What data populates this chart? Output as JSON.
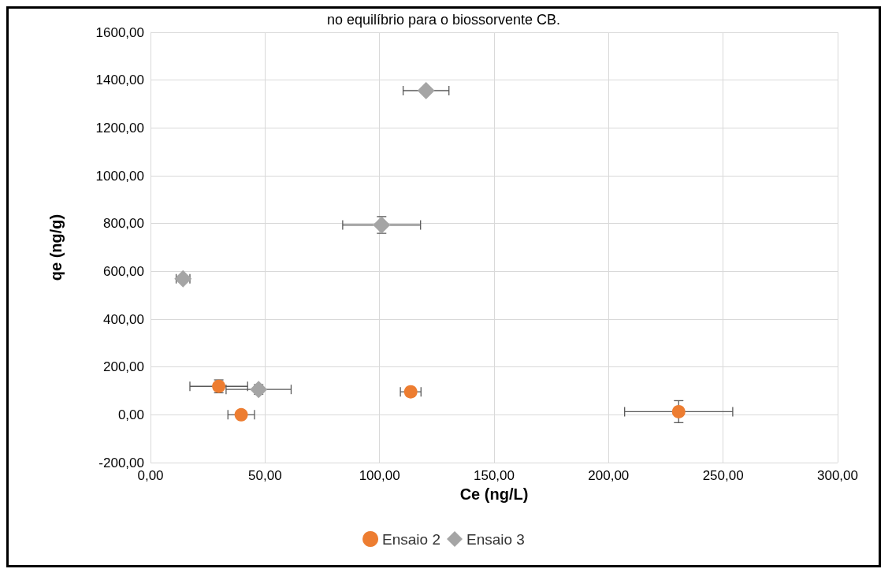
{
  "chart_data": {
    "type": "scatter",
    "title": "no equilíbrio para o biossorvente CB.",
    "xlabel": "Ce (ng/L)",
    "ylabel": "qe (ng/g)",
    "xlim": [
      0,
      300
    ],
    "ylim": [
      -200,
      1600
    ],
    "xticks": [
      {
        "value": 0,
        "label": "0,00"
      },
      {
        "value": 50,
        "label": "50,00"
      },
      {
        "value": 100,
        "label": "100,00"
      },
      {
        "value": 150,
        "label": "150,00"
      },
      {
        "value": 200,
        "label": "200,00"
      },
      {
        "value": 250,
        "label": "250,00"
      },
      {
        "value": 300,
        "label": "300,00"
      }
    ],
    "yticks": [
      {
        "value": -200,
        "label": "-200,00"
      },
      {
        "value": 0,
        "label": "0,00"
      },
      {
        "value": 200,
        "label": "200,00"
      },
      {
        "value": 400,
        "label": "400,00"
      },
      {
        "value": 600,
        "label": "600,00"
      },
      {
        "value": 800,
        "label": "800,00"
      },
      {
        "value": 1000,
        "label": "1000,00"
      },
      {
        "value": 1200,
        "label": "1200,00"
      },
      {
        "value": 1400,
        "label": "1400,00"
      },
      {
        "value": 1600,
        "label": "1600,00"
      }
    ],
    "grid": true,
    "legend": "bottom",
    "series": [
      {
        "name": "Ensaio 2",
        "color": "#ed7d31",
        "marker": "circle",
        "x": [
          29.8,
          39.6,
          113.6,
          230.6
        ],
        "values": [
          119,
          0,
          96,
          13
        ],
        "errors": [
          27,
          null,
          null,
          46
        ],
        "xerrors": [
          12.6,
          5.8,
          4.5,
          23.6
        ]
      },
      {
        "name": "Ensaio 3",
        "color": "#a5a5a5",
        "marker": "diamond",
        "x": [
          14.2,
          47.2,
          100.9,
          120.3
        ],
        "values": [
          569,
          106,
          794,
          1356
        ],
        "errors": [
          null,
          20,
          35,
          null
        ],
        "xerrors": [
          3,
          14.2,
          17,
          10
        ]
      }
    ]
  }
}
